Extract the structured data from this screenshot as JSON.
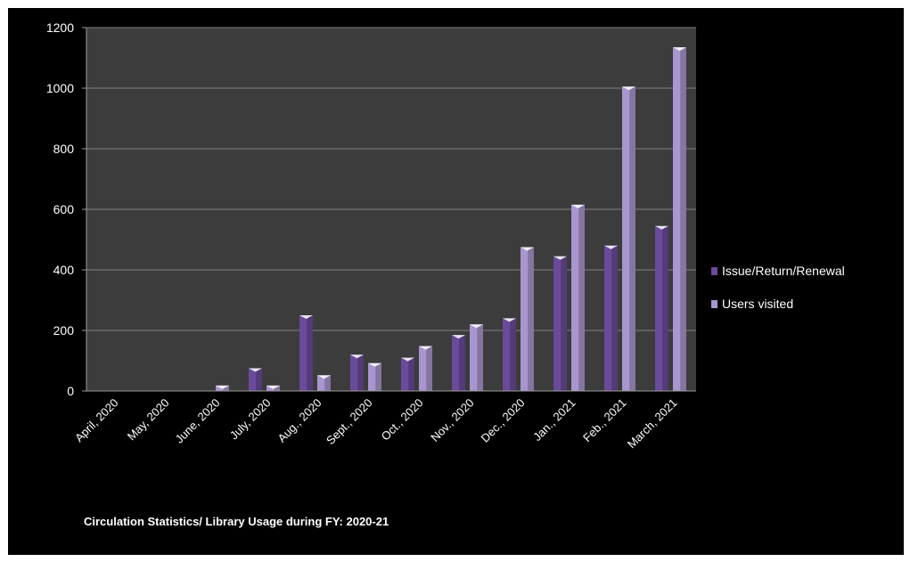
{
  "chart_data": {
    "type": "bar",
    "title": "",
    "caption": "Circulation Statistics/ Library Usage during FY: 2020-21",
    "xlabel": "",
    "ylabel": "",
    "ylim": [
      0,
      1200
    ],
    "yticks": [
      0,
      200,
      400,
      600,
      800,
      1000,
      1200
    ],
    "categories": [
      "April, 2020",
      "May, 2020",
      "June, 2020",
      "July, 2020",
      "Aug., 2020",
      "Sept., 2020",
      "Oct., 2020",
      "Nov., 2020",
      "Dec., 2020",
      "Jan., 2021",
      "Feb., 2021",
      "March, 2021"
    ],
    "series": [
      {
        "name": "Issue/Return/Renewal",
        "color": "#6a4a9a",
        "values": [
          0,
          0,
          0,
          75,
          250,
          120,
          110,
          185,
          240,
          445,
          480,
          545
        ]
      },
      {
        "name": "Users visited",
        "color": "#a996cf",
        "values": [
          0,
          0,
          18,
          18,
          52,
          92,
          148,
          220,
          475,
          615,
          1005,
          1135
        ]
      }
    ],
    "grid": true,
    "legend_position": "right",
    "plot_background": "#3c3c3c",
    "page_background": "#000000"
  }
}
